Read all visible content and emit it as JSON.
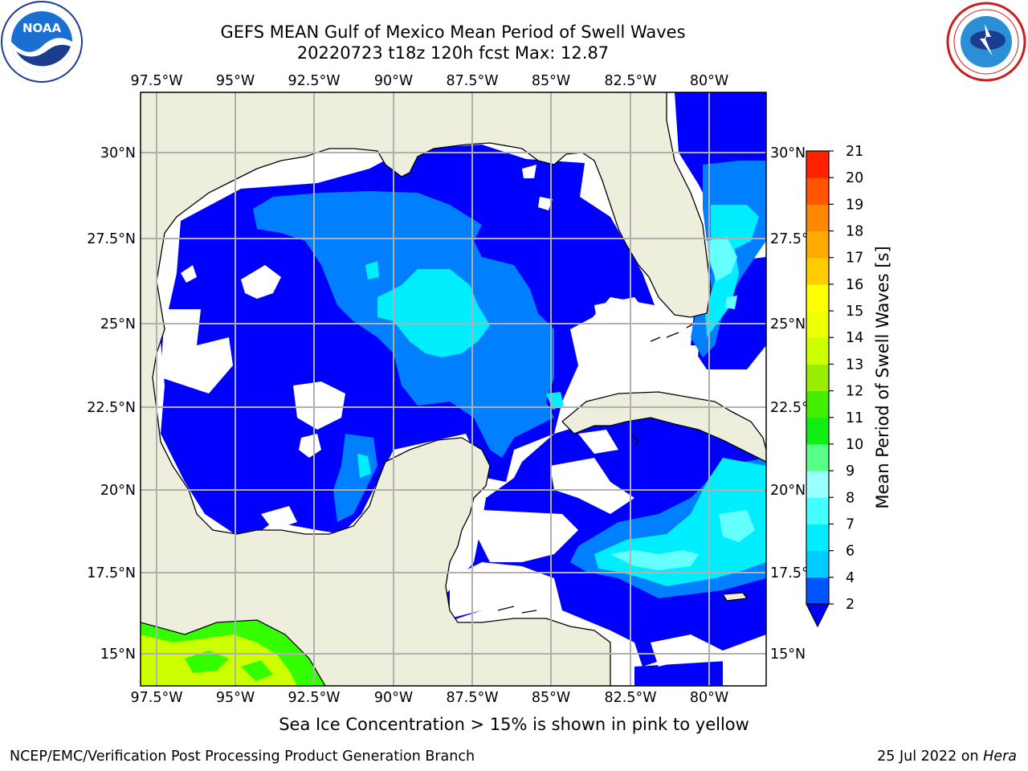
{
  "title": {
    "line1": "GEFS MEAN Gulf of Mexico Mean Period of Swell Waves",
    "line2": "20220723 t18z 120h fcst   Max: 12.87"
  },
  "logos": {
    "left": {
      "name": "noaa-logo",
      "text": "NOAA"
    },
    "right": {
      "name": "nws-logo",
      "text": "NATIONAL WEATHER SERVICE"
    }
  },
  "map": {
    "lon_labels": [
      "97.5°W",
      "95°W",
      "92.5°W",
      "90°W",
      "87.5°W",
      "85°W",
      "82.5°W",
      "80°W"
    ],
    "lat_labels": [
      "30°N",
      "27.5°N",
      "25°N",
      "22.5°N",
      "20°N",
      "17.5°N",
      "15°N"
    ],
    "extent": {
      "lon": [
        -98.0,
        -78.2
      ],
      "lat": [
        14.0,
        32.0
      ]
    }
  },
  "colorbar": {
    "label": "Mean Period of Swell Waves [s]",
    "ticks": [
      "2",
      "4",
      "6",
      "7",
      "8",
      "9",
      "10",
      "11",
      "12",
      "13",
      "14",
      "15",
      "16",
      "17",
      "18",
      "19",
      "20",
      "21"
    ],
    "colors": [
      "#0055ff",
      "#00ccff",
      "#00eeff",
      "#44ffff",
      "#99ffff",
      "#55ff88",
      "#11ee11",
      "#44ee00",
      "#99ee00",
      "#ccff00",
      "#eeff00",
      "#ffff00",
      "#ffcc00",
      "#ffaa00",
      "#ff8800",
      "#ff5500",
      "#ff2200"
    ],
    "under_color": "#0000ff"
  },
  "colors": {
    "land": "#eeeedd",
    "no_data": "#ffffff",
    "band_2_4": "#0000ff",
    "band_4_6": "#0080ff",
    "band_6_7": "#00eeff",
    "band_7_8": "#66ffff",
    "warm_low": "#33ff00",
    "warm_high": "#ccff00",
    "grid": "#b0b0b0"
  },
  "footer": {
    "sea_ice_note": "Sea Ice Concentration > 15% is shown in pink to yellow",
    "left": "NCEP/EMC/Verification Post Processing Product Generation Branch",
    "right_date": "25 Jul 2022 on",
    "right_machine": "Hera"
  }
}
